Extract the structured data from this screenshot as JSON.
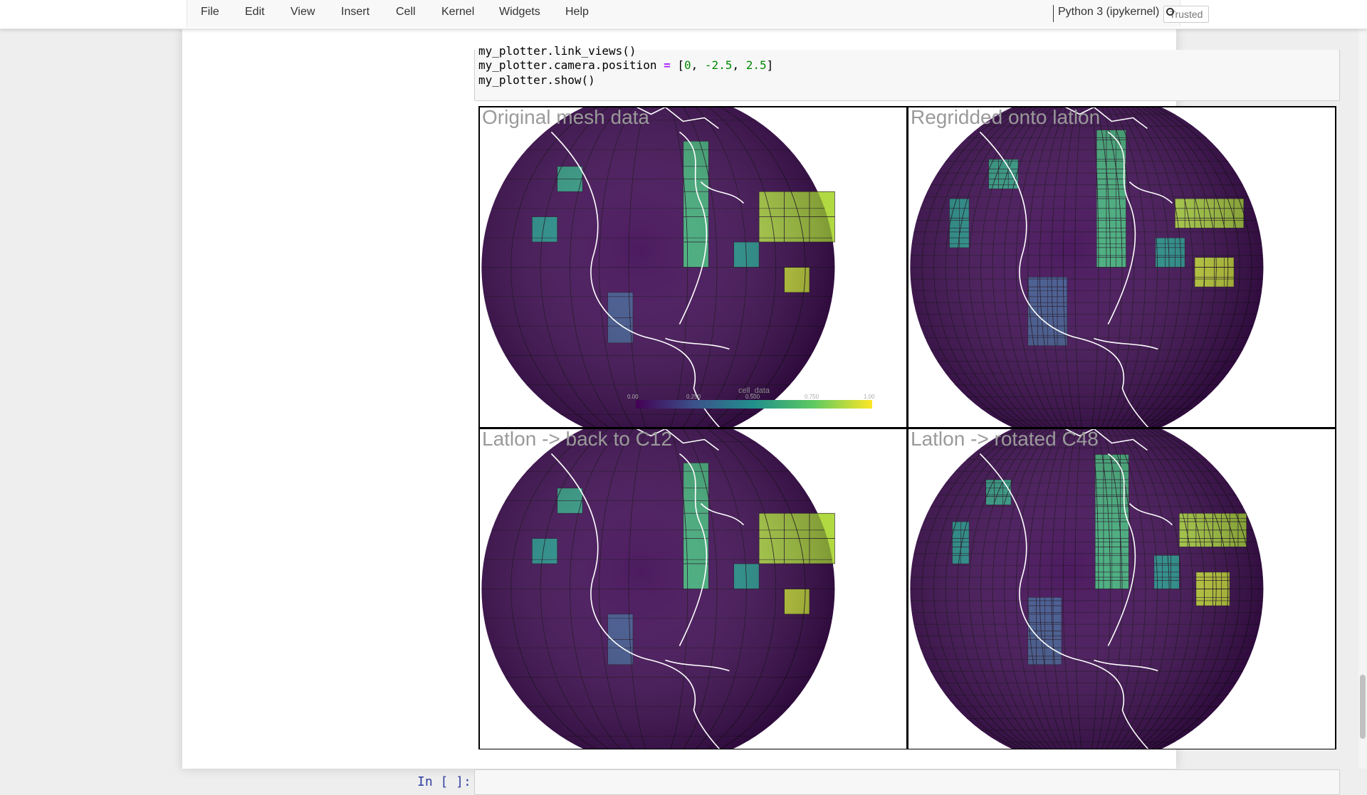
{
  "menu": {
    "items": [
      {
        "label": "File",
        "name": "menu-file"
      },
      {
        "label": "Edit",
        "name": "menu-edit"
      },
      {
        "label": "View",
        "name": "menu-view"
      },
      {
        "label": "Insert",
        "name": "menu-insert"
      },
      {
        "label": "Cell",
        "name": "menu-cell"
      },
      {
        "label": "Kernel",
        "name": "menu-kernel"
      },
      {
        "label": "Widgets",
        "name": "menu-widgets"
      },
      {
        "label": "Help",
        "name": "menu-help"
      }
    ],
    "trusted_label": "Trusted",
    "kernel_name": "Python 3 (ipykernel)"
  },
  "code_cell": {
    "line1": "my_plotter.link_views()",
    "line2_obj": "my_plotter.camera.position ",
    "line2_eq": "=",
    "line2_open": " [",
    "line2_n1": "0",
    "line2_sep1": ", ",
    "line2_n2": "-2.5",
    "line2_sep2": ", ",
    "line2_n3": "2.5",
    "line2_close": "]",
    "line3": "my_plotter.show()"
  },
  "panels": [
    {
      "title": "Original mesh data",
      "grid": "c12"
    },
    {
      "title": "Regridded onto latlon",
      "grid": "latlon"
    },
    {
      "title": "Latlon -> back to C12",
      "grid": "c12"
    },
    {
      "title": "Latlon -> rotated C48",
      "grid": "c48"
    }
  ],
  "colorbar": {
    "title": "cell_data",
    "ticks": [
      "0.00",
      "0.250",
      "0.500",
      "0.750",
      "1.00"
    ]
  },
  "empty_cell": {
    "prompt": "In [ ]:"
  },
  "colors": {
    "background": "#eeeeee",
    "prompt": "#303f9f",
    "viridis_low": "#440154",
    "viridis_high": "#fde725"
  }
}
